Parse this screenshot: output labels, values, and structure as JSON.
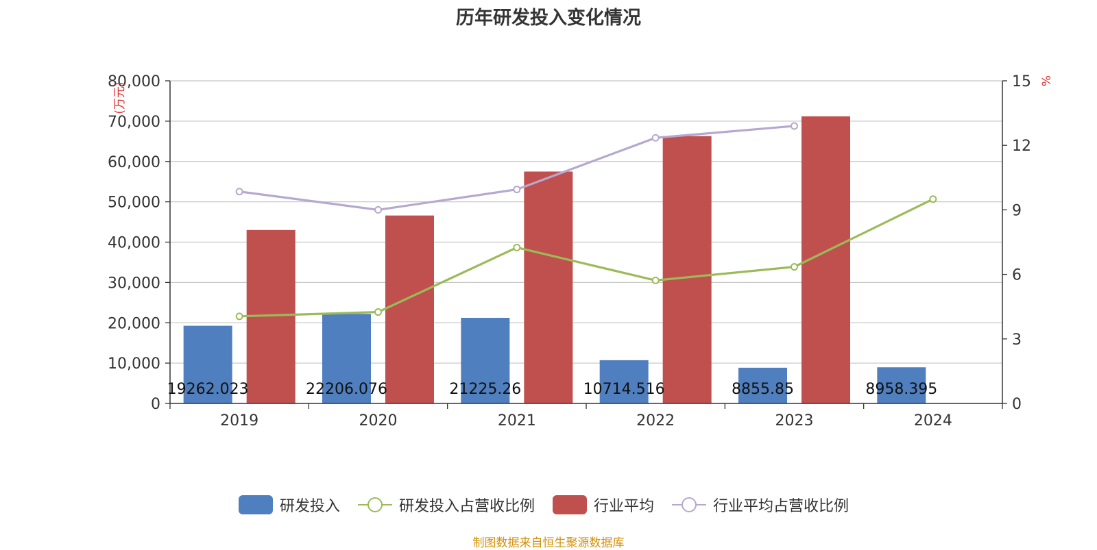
{
  "title": "历年研发投入变化情况",
  "footer": "制图数据来自恒生聚源数据库",
  "colors": {
    "rd_bar": "#4f7fbe",
    "industry_bar": "#c0504d",
    "rd_ratio_line": "#9bbb59",
    "industry_ratio_line": "#b6a8cf",
    "axis_unit": "#e0302d",
    "grid": "#c8c8c8",
    "axis": "#333333"
  },
  "chart_data": {
    "type": "bar",
    "categories": [
      "2019",
      "2020",
      "2021",
      "2022",
      "2023",
      "2024"
    ],
    "y_left_label": "(万元)",
    "y_right_label": "%",
    "y_left_ticks": [
      "0",
      "10,000",
      "20,000",
      "30,000",
      "40,000",
      "50,000",
      "60,000",
      "70,000",
      "80,000"
    ],
    "y_right_ticks": [
      "0",
      "3",
      "6",
      "9",
      "12",
      "15"
    ],
    "ylim_left": [
      0,
      80000
    ],
    "ylim_right": [
      0,
      15
    ],
    "grid": true,
    "legend_position": "bottom",
    "series": [
      {
        "name": "研发投入",
        "type": "bar",
        "axis": "left",
        "values": [
          19262.023,
          22206.076,
          21225.26,
          10714.516,
          8855.85,
          8958.395
        ],
        "labels": [
          "19262.023",
          "22206.076",
          "21225.26",
          "10714.516",
          "8855.85",
          "8958.395"
        ]
      },
      {
        "name": "研发投入占营收比例",
        "type": "line",
        "axis": "right",
        "values": [
          4.05,
          4.25,
          7.25,
          5.72,
          6.35,
          9.5
        ]
      },
      {
        "name": "行业平均",
        "type": "bar",
        "axis": "left",
        "values": [
          43000,
          46600,
          57500,
          66300,
          71200,
          null
        ]
      },
      {
        "name": "行业平均占营收比例",
        "type": "line",
        "axis": "right",
        "values": [
          9.85,
          9.0,
          9.95,
          12.35,
          12.9,
          null
        ]
      }
    ]
  }
}
